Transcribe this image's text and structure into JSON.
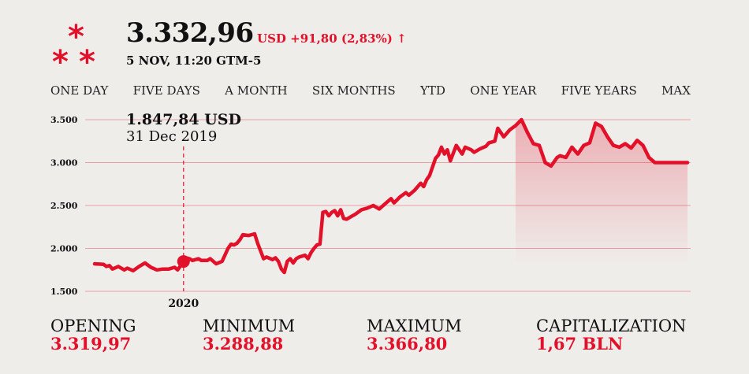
{
  "header": {
    "price": "3.332,96",
    "change": "USD +91,80 (2,83%) ↑",
    "timestamp": "5 NOV, 11:20 GTM-5"
  },
  "tabs": [
    "ONE DAY",
    "FIVE DAYS",
    "A MONTH",
    "SIX MONTHS",
    "YTD",
    "ONE YEAR",
    "FIVE YEARS",
    "MAX"
  ],
  "tooltip": {
    "value": "1.847,84 USD",
    "date": "31 Dec 2019"
  },
  "stats": [
    {
      "label": "OPENING",
      "value": "3.319,97"
    },
    {
      "label": "MINIMUM",
      "value": "3.288,88"
    },
    {
      "label": "MAXIMUM",
      "value": "3.366,80"
    },
    {
      "label": "CAPITALIZATION",
      "value": "1,67 BLN"
    }
  ],
  "colors": {
    "accent": "#e3102a",
    "background": "#efedea",
    "gridline": "#e8a0a8"
  },
  "chart_data": {
    "type": "area",
    "ylim": [
      1500,
      3600
    ],
    "yticks": [
      1500,
      2000,
      2500,
      3000,
      3500
    ],
    "ytick_labels": [
      "1.500",
      "2.000",
      "2.500",
      "3.000",
      "3.500"
    ],
    "xtick_labels": [
      {
        "x": 0.0,
        "label": "2020"
      }
    ],
    "xlim": [
      -0.3,
      1.7
    ],
    "highlight": {
      "x": 0.0,
      "y": 1847.84
    },
    "series": [
      {
        "x": [
          -0.3,
          -0.27,
          -0.26,
          -0.25,
          -0.24,
          -0.22,
          -0.2,
          -0.19,
          -0.17,
          -0.15,
          -0.13,
          -0.11,
          -0.09,
          -0.07,
          -0.05,
          -0.03,
          -0.02,
          0.0,
          0.01,
          0.02,
          0.03,
          0.05,
          0.06,
          0.08,
          0.09,
          0.11,
          0.13,
          0.15,
          0.16,
          0.17,
          0.18,
          0.19,
          0.2,
          0.22,
          0.24,
          0.25,
          0.27,
          0.28,
          0.3,
          0.31,
          0.32,
          0.33,
          0.34,
          0.35,
          0.36,
          0.37,
          0.38,
          0.39,
          0.4,
          0.41,
          0.42,
          0.43,
          0.44,
          0.45,
          0.46,
          0.47,
          0.48,
          0.49,
          0.5,
          0.51,
          0.52,
          0.53,
          0.54,
          0.55,
          0.57,
          0.58,
          0.6,
          0.62,
          0.64,
          0.66,
          0.68,
          0.7,
          0.71,
          0.73,
          0.75,
          0.76,
          0.78,
          0.8,
          0.81,
          0.82,
          0.83,
          0.85,
          0.86,
          0.87,
          0.88,
          0.89,
          0.9,
          0.92,
          0.94,
          0.95,
          0.97,
          0.98,
          1.0,
          1.02,
          1.03,
          1.05,
          1.06,
          1.08,
          1.1,
          1.12,
          1.14,
          1.16,
          1.18,
          1.2,
          1.22,
          1.24,
          1.26,
          1.27,
          1.29,
          1.31,
          1.33,
          1.35,
          1.37,
          1.39,
          1.41,
          1.43,
          1.45,
          1.47,
          1.49,
          1.51,
          1.53,
          1.55,
          1.57,
          1.59,
          1.61,
          1.63,
          1.65,
          1.67,
          1.69,
          1.7
        ],
        "y": [
          1820,
          1815,
          1790,
          1800,
          1760,
          1790,
          1750,
          1770,
          1740,
          1790,
          1830,
          1780,
          1750,
          1760,
          1760,
          1780,
          1750,
          1847.84,
          1890,
          1880,
          1860,
          1880,
          1860,
          1860,
          1880,
          1820,
          1850,
          2000,
          2050,
          2040,
          2060,
          2100,
          2160,
          2150,
          2170,
          2060,
          1880,
          1900,
          1870,
          1890,
          1850,
          1760,
          1720,
          1850,
          1880,
          1830,
          1880,
          1900,
          1910,
          1920,
          1880,
          1950,
          2000,
          2040,
          2050,
          2420,
          2430,
          2380,
          2420,
          2440,
          2380,
          2450,
          2350,
          2340,
          2380,
          2400,
          2450,
          2470,
          2500,
          2460,
          2520,
          2580,
          2530,
          2600,
          2650,
          2620,
          2680,
          2760,
          2720,
          2800,
          2850,
          3050,
          3090,
          3180,
          3100,
          3150,
          3020,
          3200,
          3100,
          3180,
          3150,
          3120,
          3160,
          3190,
          3230,
          3250,
          3400,
          3300,
          3380,
          3430,
          3500,
          3350,
          3220,
          3200,
          3000,
          2960,
          3060,
          3080,
          3060,
          3180,
          3100,
          3200,
          3230,
          3460,
          3420,
          3300,
          3200,
          3180,
          3220,
          3170,
          3260,
          3200,
          3060,
          3000,
          3000,
          3000,
          3000,
          3000,
          3000,
          3000
        ],
        "values_note": ""
      }
    ]
  }
}
